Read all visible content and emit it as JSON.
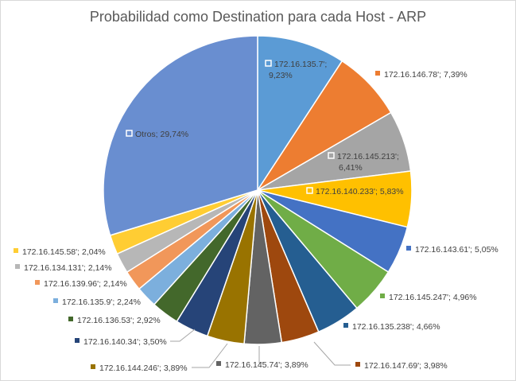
{
  "chart_data": {
    "type": "pie",
    "title": "Probabilidad como Destination para cada Host - ARP",
    "categories": [
      "172.16.135.7'",
      "172.16.146.78'",
      "172.16.145.213'",
      "172.16.140.233'",
      "172.16.143.61'",
      "172.16.145.247'",
      "172.16.135.238'",
      "172.16.147.69'",
      "172.16.145.74'",
      "172.16.144.246'",
      "172.16.140.34'",
      "172.16.136.53'",
      "172.16.135.9'",
      "172.16.139.96'",
      "172.16.134.131'",
      "172.16.145.58'",
      "Otros"
    ],
    "values": [
      9.23,
      7.39,
      6.41,
      5.83,
      5.05,
      4.96,
      4.66,
      3.98,
      3.89,
      3.89,
      3.5,
      2.92,
      2.24,
      2.14,
      2.14,
      2.04,
      29.74
    ],
    "value_labels": [
      "9,23%",
      "7,39%",
      "6,41%",
      "5,83%",
      "5,05%",
      "4,96%",
      "4,66%",
      "3,98%",
      "3,89%",
      "3,89%",
      "3,50%",
      "2,92%",
      "2,24%",
      "2,14%",
      "2,14%",
      "2,04%",
      "29,74%"
    ],
    "colors": [
      "#5b9bd5",
      "#ed7d31",
      "#a5a5a5",
      "#ffc000",
      "#4472c4",
      "#70ad47",
      "#255e91",
      "#9e480e",
      "#636363",
      "#997300",
      "#264478",
      "#43682b",
      "#7cafdd",
      "#f1975a",
      "#b7b7b7",
      "#ffcd33",
      "#698ed0"
    ],
    "legend": "none",
    "data_labels": "category; percent"
  }
}
